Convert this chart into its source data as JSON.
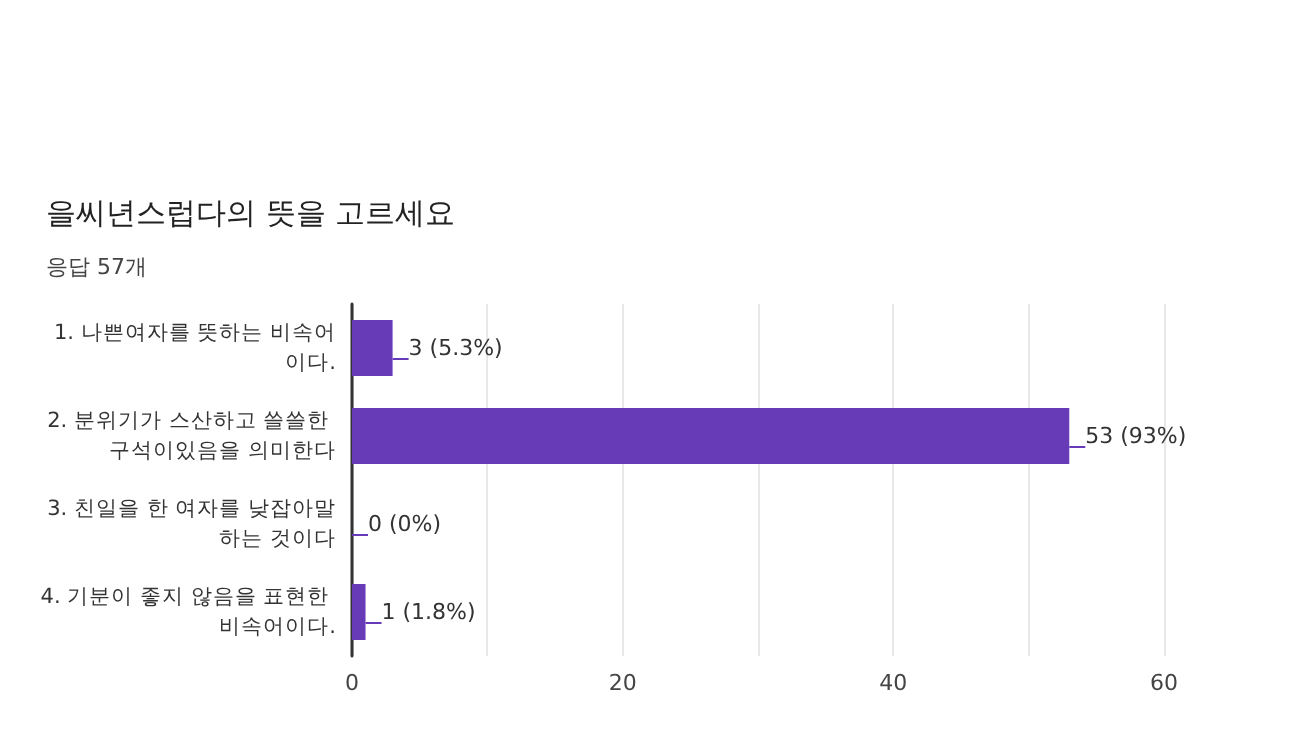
{
  "chart_data": {
    "type": "bar",
    "orientation": "horizontal",
    "title": "을씨년스럽다의 뜻을 고르세요",
    "subtitle": "응답 57개",
    "categories": [
      "1. 나쁜여자를 뜻하는 비속어이다.",
      "2. 분위기가 스산하고 쓸쓸한 구석이있음을 의미한다",
      "3. 친일을 한 여자를 낮잡아말하는 것이다",
      "4. 기분이 좋지 않음을 표현한 비속어이다."
    ],
    "values": [
      3,
      53,
      0,
      1
    ],
    "value_labels": [
      "3 (5.3%)",
      "53 (93%)",
      "0 (0%)",
      "1 (1.8%)"
    ],
    "color": "#673ab7",
    "xlim": [
      0,
      60
    ],
    "xticks": [
      0,
      {
        "value": 10,
        "label": null
      },
      20,
      {
        "value": 30,
        "label": null
      },
      40,
      {
        "value": 50,
        "label": null
      },
      60
    ],
    "grid": "x"
  }
}
